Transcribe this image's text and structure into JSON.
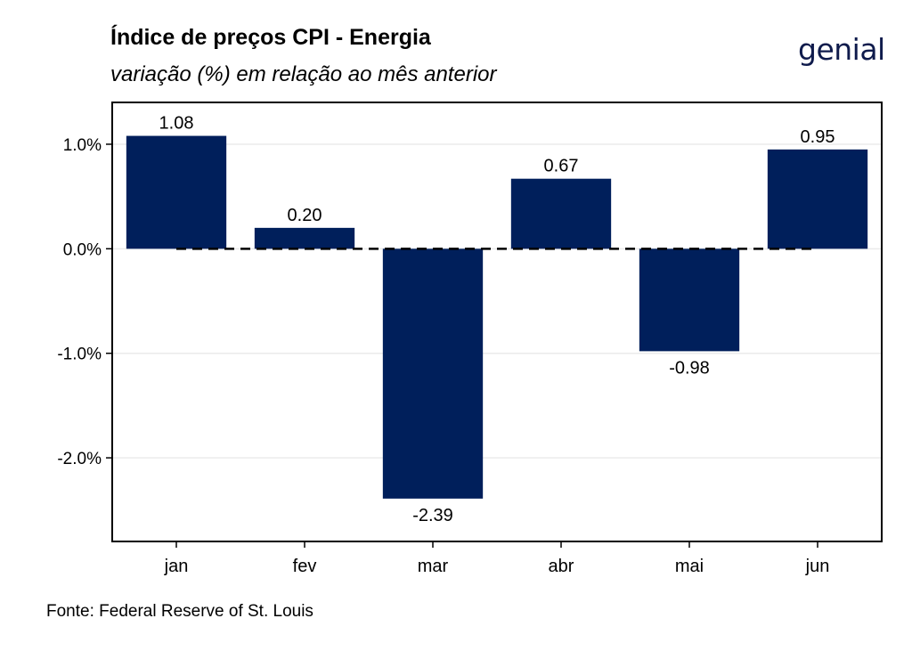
{
  "title": "Índice de preços CPI - Energia",
  "subtitle": "variação (%) em relação ao mês anterior",
  "logo": "genial",
  "caption": "Fonte: Federal Reserve of St. Louis",
  "colors": {
    "bar": "#001f5b",
    "grid": "#ebebeb",
    "frame": "#000000"
  },
  "chart_data": {
    "type": "bar",
    "categories": [
      "jan",
      "fev",
      "mar",
      "abr",
      "mai",
      "jun"
    ],
    "values": [
      1.08,
      0.2,
      -2.39,
      0.67,
      -0.98,
      0.95
    ],
    "data_labels": [
      "1.08",
      "0.20",
      "-2.39",
      "0.67",
      "-0.98",
      "0.95"
    ],
    "y_ticks": [
      1.0,
      0.0,
      -1.0,
      -2.0
    ],
    "y_tick_labels": [
      "1.0%",
      "0.0%",
      "-1.0%",
      "-2.0%"
    ],
    "ylim": [
      -2.8,
      1.4
    ],
    "reference_line": 0,
    "grid": true
  }
}
